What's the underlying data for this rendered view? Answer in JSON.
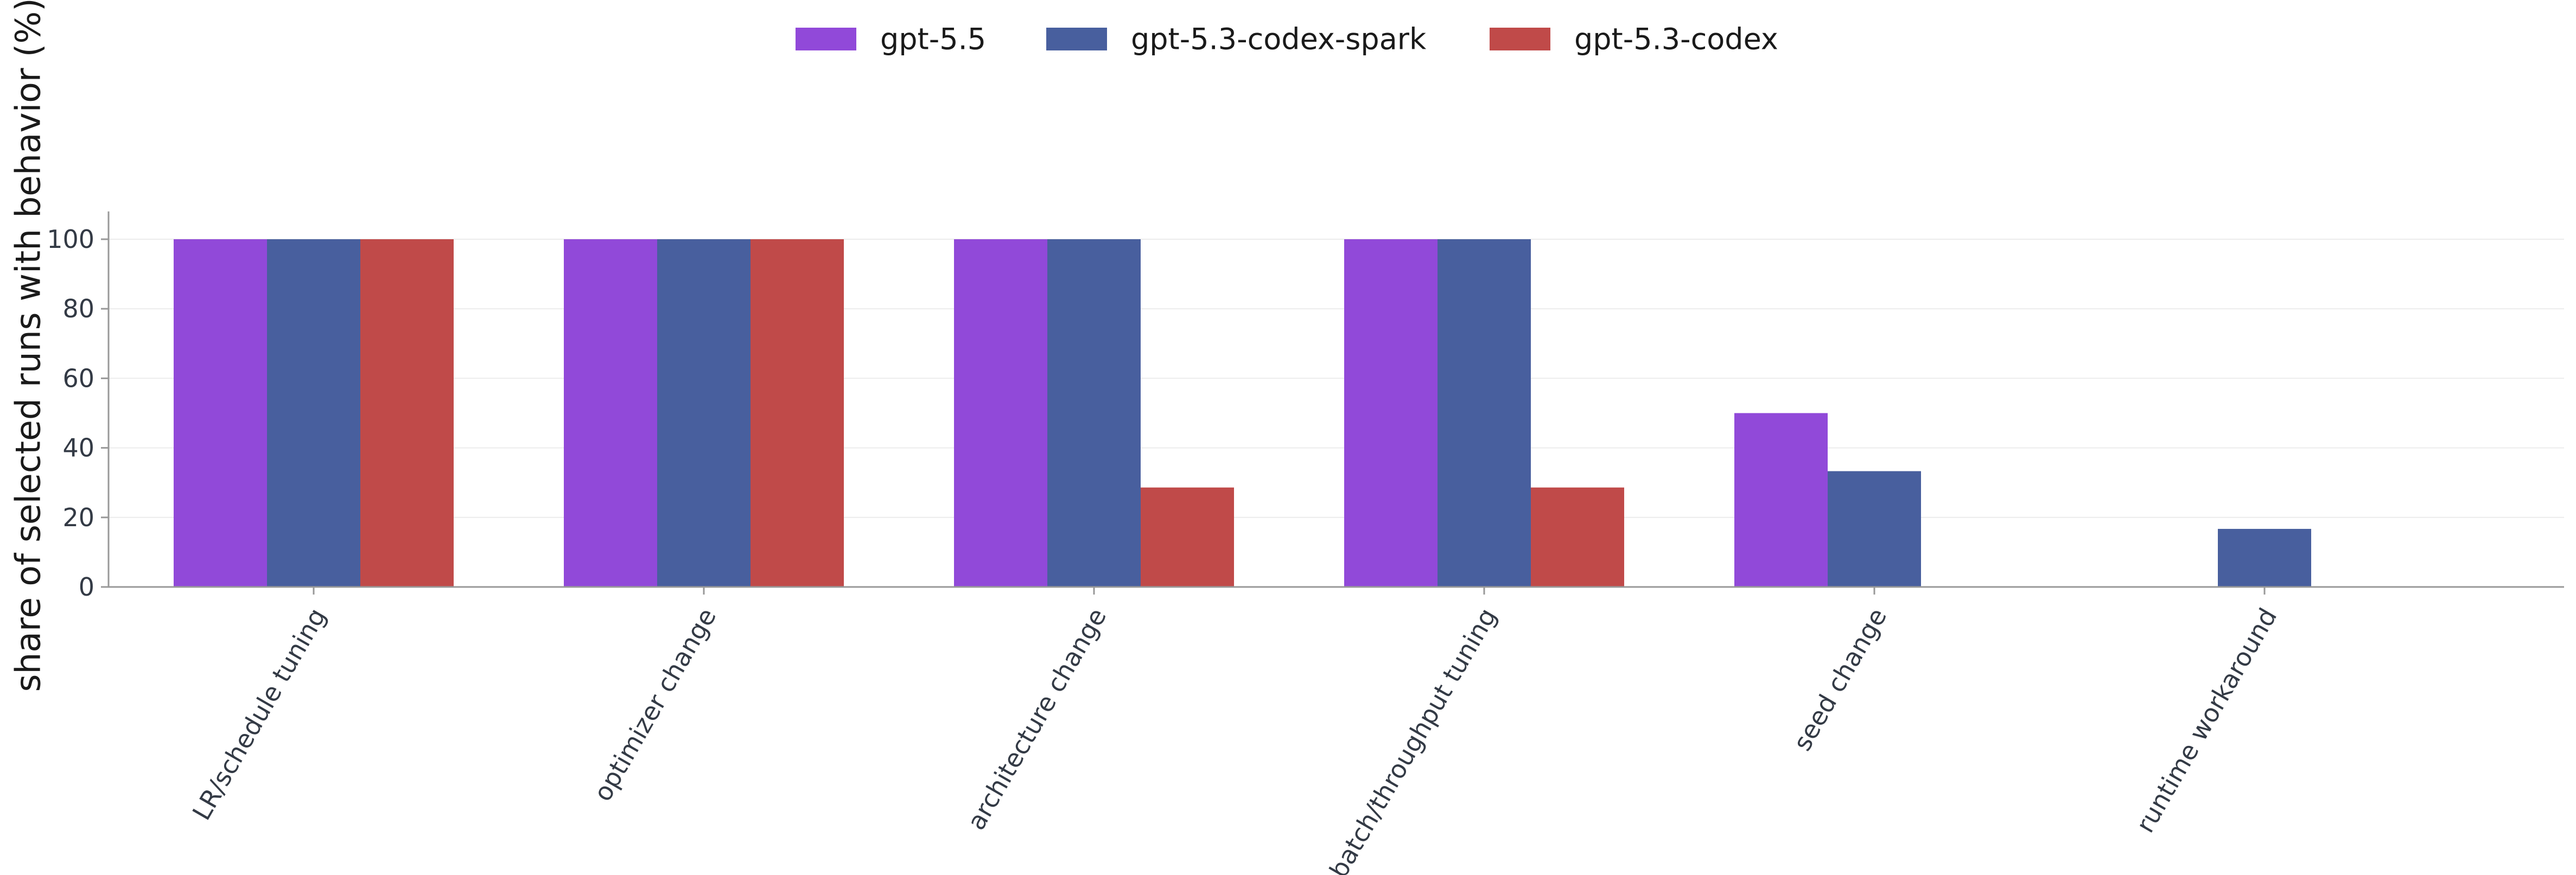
{
  "chart_data": {
    "type": "bar",
    "ylabel": "share of selected runs with behavior (%)",
    "ylim": [
      0,
      108
    ],
    "yticks": [
      0,
      20,
      40,
      60,
      80,
      100
    ],
    "categories": [
      "LR/schedule tuning",
      "optimizer change",
      "architecture change",
      "batch/throughput tuning",
      "seed change",
      "runtime workaround"
    ],
    "series": [
      {
        "name": "gpt-5.5",
        "color": "#9149d9",
        "values": [
          100,
          100,
          100,
          100,
          50,
          0
        ]
      },
      {
        "name": "gpt-5.3-codex-spark",
        "color": "#485f9e",
        "values": [
          100,
          100,
          100,
          100,
          33.3,
          16.7
        ]
      },
      {
        "name": "gpt-5.3-codex",
        "color": "#c04a49",
        "values": [
          100,
          100,
          28.6,
          28.6,
          0,
          0
        ]
      }
    ],
    "legend_position": "top-center",
    "grid": true
  }
}
